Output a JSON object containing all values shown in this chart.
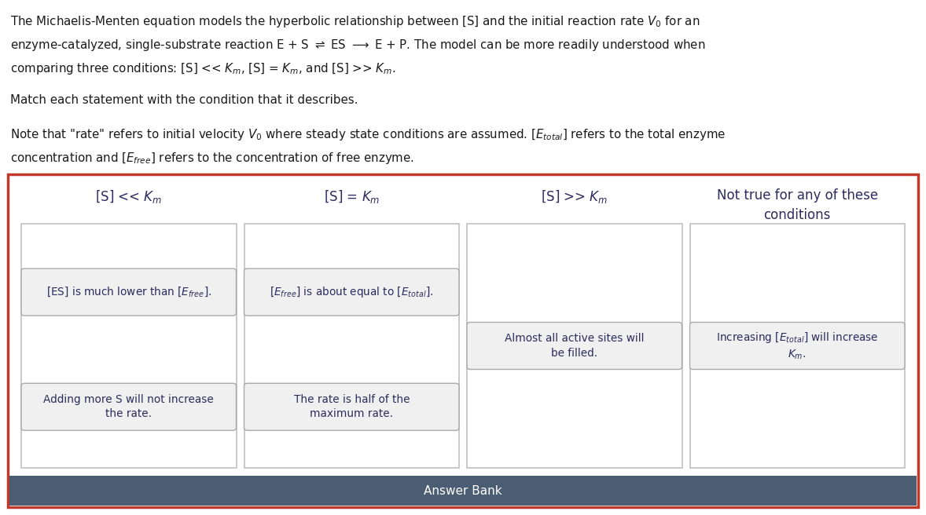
{
  "bg_color": "#ffffff",
  "text_color": "#1a1a1a",
  "outer_border_color": "#c0392b",
  "column_header_color": "#2c2c5e",
  "inner_border_color": "#c0c0c0",
  "card_bg_color": "#f0f0f0",
  "card_border_color": "#aaaaaa",
  "answer_bank_bg": "#4a5d72",
  "answer_bank_text_color": "#ffffff",
  "figw": 11.78,
  "figh": 6.56,
  "dpi": 100,
  "line1": "The Michaelis-Menten equation models the hyperbolic relationship between [S] and the initial reaction rate $V_0$ for an",
  "line2": "enzyme-catalyzed, single-substrate reaction E + S $\\rightleftharpoons$ ES $\\longrightarrow$ E + P. The model can be more readily understood when",
  "line3": "comparing three conditions: [S] << $K_m$, [S] = $K_m$, and [S] >> $K_m$.",
  "line4": "Match each statement with the condition that it describes.",
  "line5": "Note that \"rate\" refers to initial velocity $V_0$ where steady state conditions are assumed. [$E_{total}$] refers to the total enzyme",
  "line6": "concentration and [$E_{free}$] refers to the concentration of free enzyme.",
  "col_headers": [
    "[S] << $K_m$",
    "[S] = $K_m$",
    "[S] >> $K_m$",
    "Not true for any of these\nconditions"
  ],
  "col0_card1": "[ES] is much lower than [$E_{free}$].",
  "col0_card2": "Adding more S will not increase\nthe rate.",
  "col1_card1": "[$E_{free}$] is about equal to [$E_{total}$].",
  "col1_card2": "The rate is half of the\nmaximum rate.",
  "col2_card1": "Almost all active sites will\nbe filled.",
  "col3_card1": "Increasing [$E_{total}$] will increase\n$K_m$.",
  "answer_bank_label": "Answer Bank"
}
